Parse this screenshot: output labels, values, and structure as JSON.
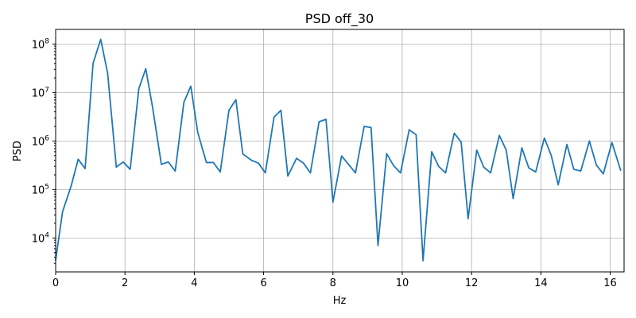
{
  "chart_data": {
    "type": "line",
    "title": "PSD off_30",
    "xlabel": "Hz",
    "ylabel": "PSD",
    "xlim": [
      0,
      16.4
    ],
    "ylim": [
      2000,
      200000000
    ],
    "yscale": "log",
    "grid": true,
    "xticks": [
      0,
      2,
      4,
      6,
      8,
      10,
      12,
      14,
      16
    ],
    "xtick_labels": [
      "0",
      "2",
      "4",
      "6",
      "8",
      "10",
      "12",
      "14",
      "16"
    ],
    "yticks": [
      10000,
      100000,
      1000000,
      10000000,
      100000000
    ],
    "ytick_labels": [
      {
        "base": "10",
        "exp": "4"
      },
      {
        "base": "10",
        "exp": "5"
      },
      {
        "base": "10",
        "exp": "6"
      },
      {
        "base": "10",
        "exp": "7"
      },
      {
        "base": "10",
        "exp": "8"
      }
    ],
    "color": "#1f77b4",
    "series": [
      {
        "x": [
          0.0,
          0.2,
          0.45,
          0.65,
          0.85,
          1.08,
          1.3,
          1.5,
          1.75,
          1.95,
          2.15,
          2.4,
          2.6,
          2.8,
          3.05,
          3.25,
          3.45,
          3.7,
          3.9,
          4.1,
          4.35,
          4.55,
          4.75,
          5.0,
          5.2,
          5.4,
          5.65,
          5.85,
          6.05,
          6.3,
          6.5,
          6.7,
          6.95,
          7.15,
          7.35,
          7.6,
          7.8,
          8.0,
          8.25,
          8.45,
          8.65,
          8.9,
          9.1,
          9.3,
          9.55,
          9.75,
          9.95,
          10.2,
          10.4,
          10.6,
          10.85,
          11.05,
          11.25,
          11.5,
          11.7,
          11.9,
          12.15,
          12.35,
          12.55,
          12.8,
          13.0,
          13.2,
          13.45,
          13.65,
          13.85,
          14.1,
          14.3,
          14.5,
          14.75,
          14.95,
          15.15,
          15.4,
          15.6,
          15.8,
          16.05,
          16.3
        ],
        "values": [
          3500,
          35000,
          120000,
          420000,
          270000,
          40000000,
          125000000,
          25000000,
          290000,
          370000,
          260000,
          12000000,
          31000000,
          4800000,
          330000,
          370000,
          240000,
          6300000,
          13500000,
          1500000,
          360000,
          360000,
          230000,
          4300000,
          7100000,
          540000,
          400000,
          350000,
          220000,
          3100000,
          4300000,
          190000,
          440000,
          350000,
          220000,
          2500000,
          2800000,
          55000,
          490000,
          330000,
          220000,
          2000000,
          1900000,
          7000,
          550000,
          310000,
          220000,
          1700000,
          1350000,
          3400,
          600000,
          300000,
          220000,
          1450000,
          950000,
          25000,
          650000,
          290000,
          220000,
          1300000,
          650000,
          65000,
          720000,
          280000,
          230000,
          1150000,
          500000,
          125000,
          850000,
          260000,
          240000,
          1000000,
          320000,
          210000,
          930000,
          250000
        ]
      }
    ]
  }
}
